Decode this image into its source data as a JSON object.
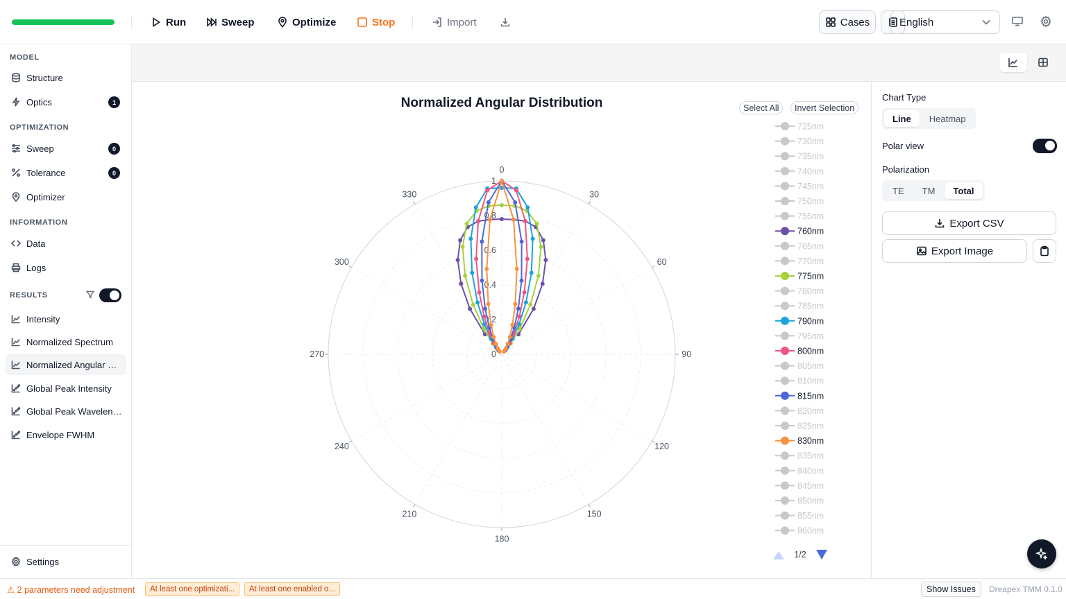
{
  "toolbar": {
    "progress": 1.0,
    "run_label": "Run",
    "sweep_label": "Sweep",
    "optimize_label": "Optimize",
    "stop_label": "Stop",
    "import_label": "Import",
    "cases_label": "Cases",
    "language": "English"
  },
  "sidebar": {
    "sections": {
      "model": "MODEL",
      "optimization": "OPTIMIZATION",
      "information": "INFORMATION",
      "results": "RESULTS"
    },
    "items": {
      "structure": "Structure",
      "optics": "Optics",
      "optics_badge": "1",
      "sweep": "Sweep",
      "sweep_badge": "0",
      "tolerance": "Tolerance",
      "tolerance_badge": "0",
      "optimizer": "Optimizer",
      "data": "Data",
      "logs": "Logs",
      "intensity": "Intensity",
      "normalized_spectrum": "Normalized Spectrum",
      "normalized_angular": "Normalized Angular Distribution",
      "global_peak_intensity": "Global Peak Intensity",
      "global_peak_wavelength": "Global Peak Wavelength",
      "envelope_fwhm": "Envelope FWHM",
      "settings": "Settings"
    }
  },
  "panel": {
    "chart_type_label": "Chart Type",
    "chart_type_options": [
      "Line",
      "Heatmap"
    ],
    "chart_type_selected": "Line",
    "polar_view_label": "Polar view",
    "polar_view_on": true,
    "polarization_label": "Polarization",
    "polarization_options": [
      "TE",
      "TM",
      "Total"
    ],
    "polarization_selected": "Total",
    "export_csv": "Export CSV",
    "export_image": "Export Image"
  },
  "legend": {
    "select_all": "Select All",
    "invert_selection": "Invert Selection",
    "page": "1/2"
  },
  "status": {
    "warning": "⚠ 2 parameters need adjustment",
    "chip1": "At least one optimizati...",
    "chip2": "At least one enabled o...",
    "show_issues": "Show Issues",
    "version": "Dreapex TMM 0.1.0"
  },
  "colors": {
    "progress": "#16c35a",
    "stop": "#f97316",
    "760nm": "#6b4fa8",
    "775nm": "#a8d13e",
    "790nm": "#1ba3dc",
    "800nm": "#f0567f",
    "815nm": "#4e68d6",
    "830nm": "#f99240",
    "inactive": "#c8c8cc"
  },
  "chart_data": {
    "type": "polar-line",
    "title": "Normalized Angular Distribution",
    "angle_ticks": [
      "0",
      "30",
      "60",
      "90",
      "120",
      "150",
      "180",
      "210",
      "240",
      "270",
      "300",
      "330"
    ],
    "radial_ticks": [
      "0",
      "0.2",
      "0.4",
      "0.6",
      "0.8",
      "1"
    ],
    "radial_range": [
      0,
      1
    ],
    "angles_deg": [
      -40,
      -35,
      -30,
      -25,
      -20,
      -15,
      -10,
      -5,
      0,
      5,
      10,
      15,
      20,
      25,
      30,
      35,
      40
    ],
    "legend": [
      "725nm",
      "730nm",
      "735nm",
      "740nm",
      "745nm",
      "750nm",
      "755nm",
      "760nm",
      "765nm",
      "770nm",
      "775nm",
      "780nm",
      "785nm",
      "790nm",
      "795nm",
      "800nm",
      "805nm",
      "810nm",
      "815nm",
      "820nm",
      "825nm",
      "830nm",
      "835nm",
      "840nm",
      "845nm",
      "850nm",
      "855nm",
      "860nm"
    ],
    "selected": [
      "760nm",
      "775nm",
      "790nm",
      "800nm",
      "815nm",
      "830nm"
    ],
    "series": [
      {
        "name": "760nm",
        "values": [
          0.15,
          0.32,
          0.47,
          0.6,
          0.7,
          0.76,
          0.78,
          0.78,
          0.78,
          0.78,
          0.78,
          0.76,
          0.7,
          0.6,
          0.47,
          0.32,
          0.15
        ]
      },
      {
        "name": "775nm",
        "values": [
          0.08,
          0.18,
          0.33,
          0.5,
          0.66,
          0.78,
          0.84,
          0.86,
          0.86,
          0.86,
          0.84,
          0.78,
          0.66,
          0.5,
          0.33,
          0.18,
          0.08
        ]
      },
      {
        "name": "790nm",
        "values": [
          0.05,
          0.11,
          0.2,
          0.33,
          0.5,
          0.69,
          0.86,
          0.96,
          0.96,
          0.96,
          0.86,
          0.69,
          0.5,
          0.33,
          0.2,
          0.11,
          0.05
        ]
      },
      {
        "name": "800nm",
        "values": [
          0.04,
          0.08,
          0.14,
          0.24,
          0.38,
          0.57,
          0.78,
          0.95,
          1.0,
          0.95,
          0.78,
          0.57,
          0.38,
          0.24,
          0.14,
          0.08,
          0.04
        ]
      },
      {
        "name": "815nm",
        "values": [
          0.03,
          0.06,
          0.1,
          0.17,
          0.28,
          0.44,
          0.66,
          0.88,
          1.0,
          0.88,
          0.66,
          0.44,
          0.28,
          0.17,
          0.1,
          0.06,
          0.03
        ]
      },
      {
        "name": "830nm",
        "values": [
          0.02,
          0.04,
          0.07,
          0.11,
          0.18,
          0.3,
          0.5,
          0.78,
          1.0,
          0.78,
          0.5,
          0.3,
          0.18,
          0.11,
          0.07,
          0.04,
          0.02
        ]
      }
    ]
  }
}
